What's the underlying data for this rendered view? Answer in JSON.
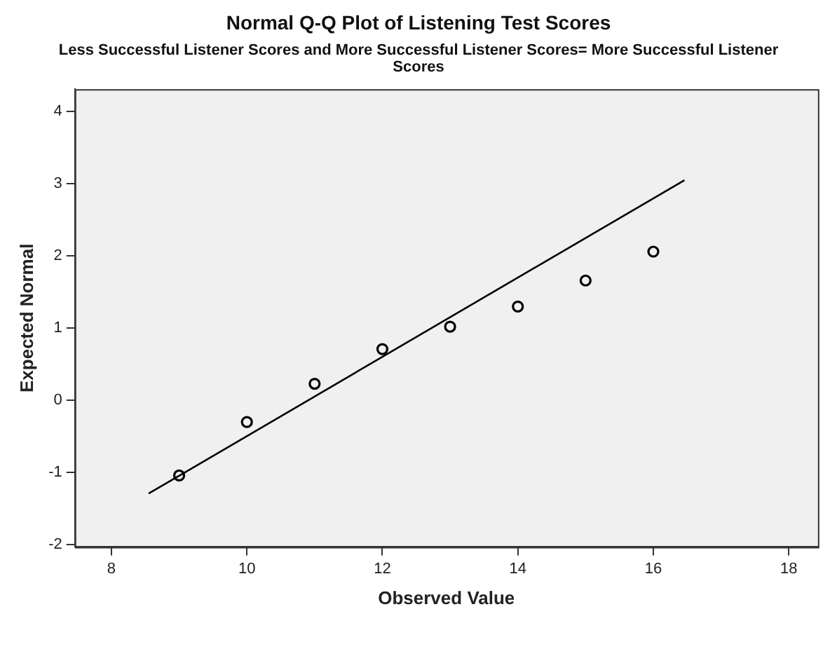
{
  "chart_data": {
    "type": "scatter",
    "title": "Normal Q-Q Plot of Listening Test Scores",
    "subtitle": "Less Successful Listener Scores and More Successful Listener Scores= More Successful Listener Scores",
    "xlabel": "Observed Value",
    "ylabel": "Expected Normal",
    "x": [
      9,
      10,
      11,
      12,
      13,
      14,
      15,
      16
    ],
    "series": [
      {
        "color": "#000000",
        "values": [
          -1.04,
          -0.3,
          0.23,
          0.71,
          1.02,
          1.3,
          1.66,
          2.06
        ],
        "marker": "circle"
      },
      {
        "type": "line",
        "color": "#000000",
        "x": [
          8.55,
          16.46
        ],
        "values": [
          -1.29,
          3.05
        ],
        "marker": "none",
        "line_style": "solid"
      }
    ],
    "xlim": [
      7.46,
      18.43
    ],
    "xticks": [
      8,
      10,
      12,
      14,
      16,
      18
    ],
    "ylim": [
      -2.03,
      4.31
    ],
    "yticks": [
      -2,
      -1,
      0,
      1,
      2,
      3,
      4
    ],
    "grid": false,
    "legend": false
  }
}
